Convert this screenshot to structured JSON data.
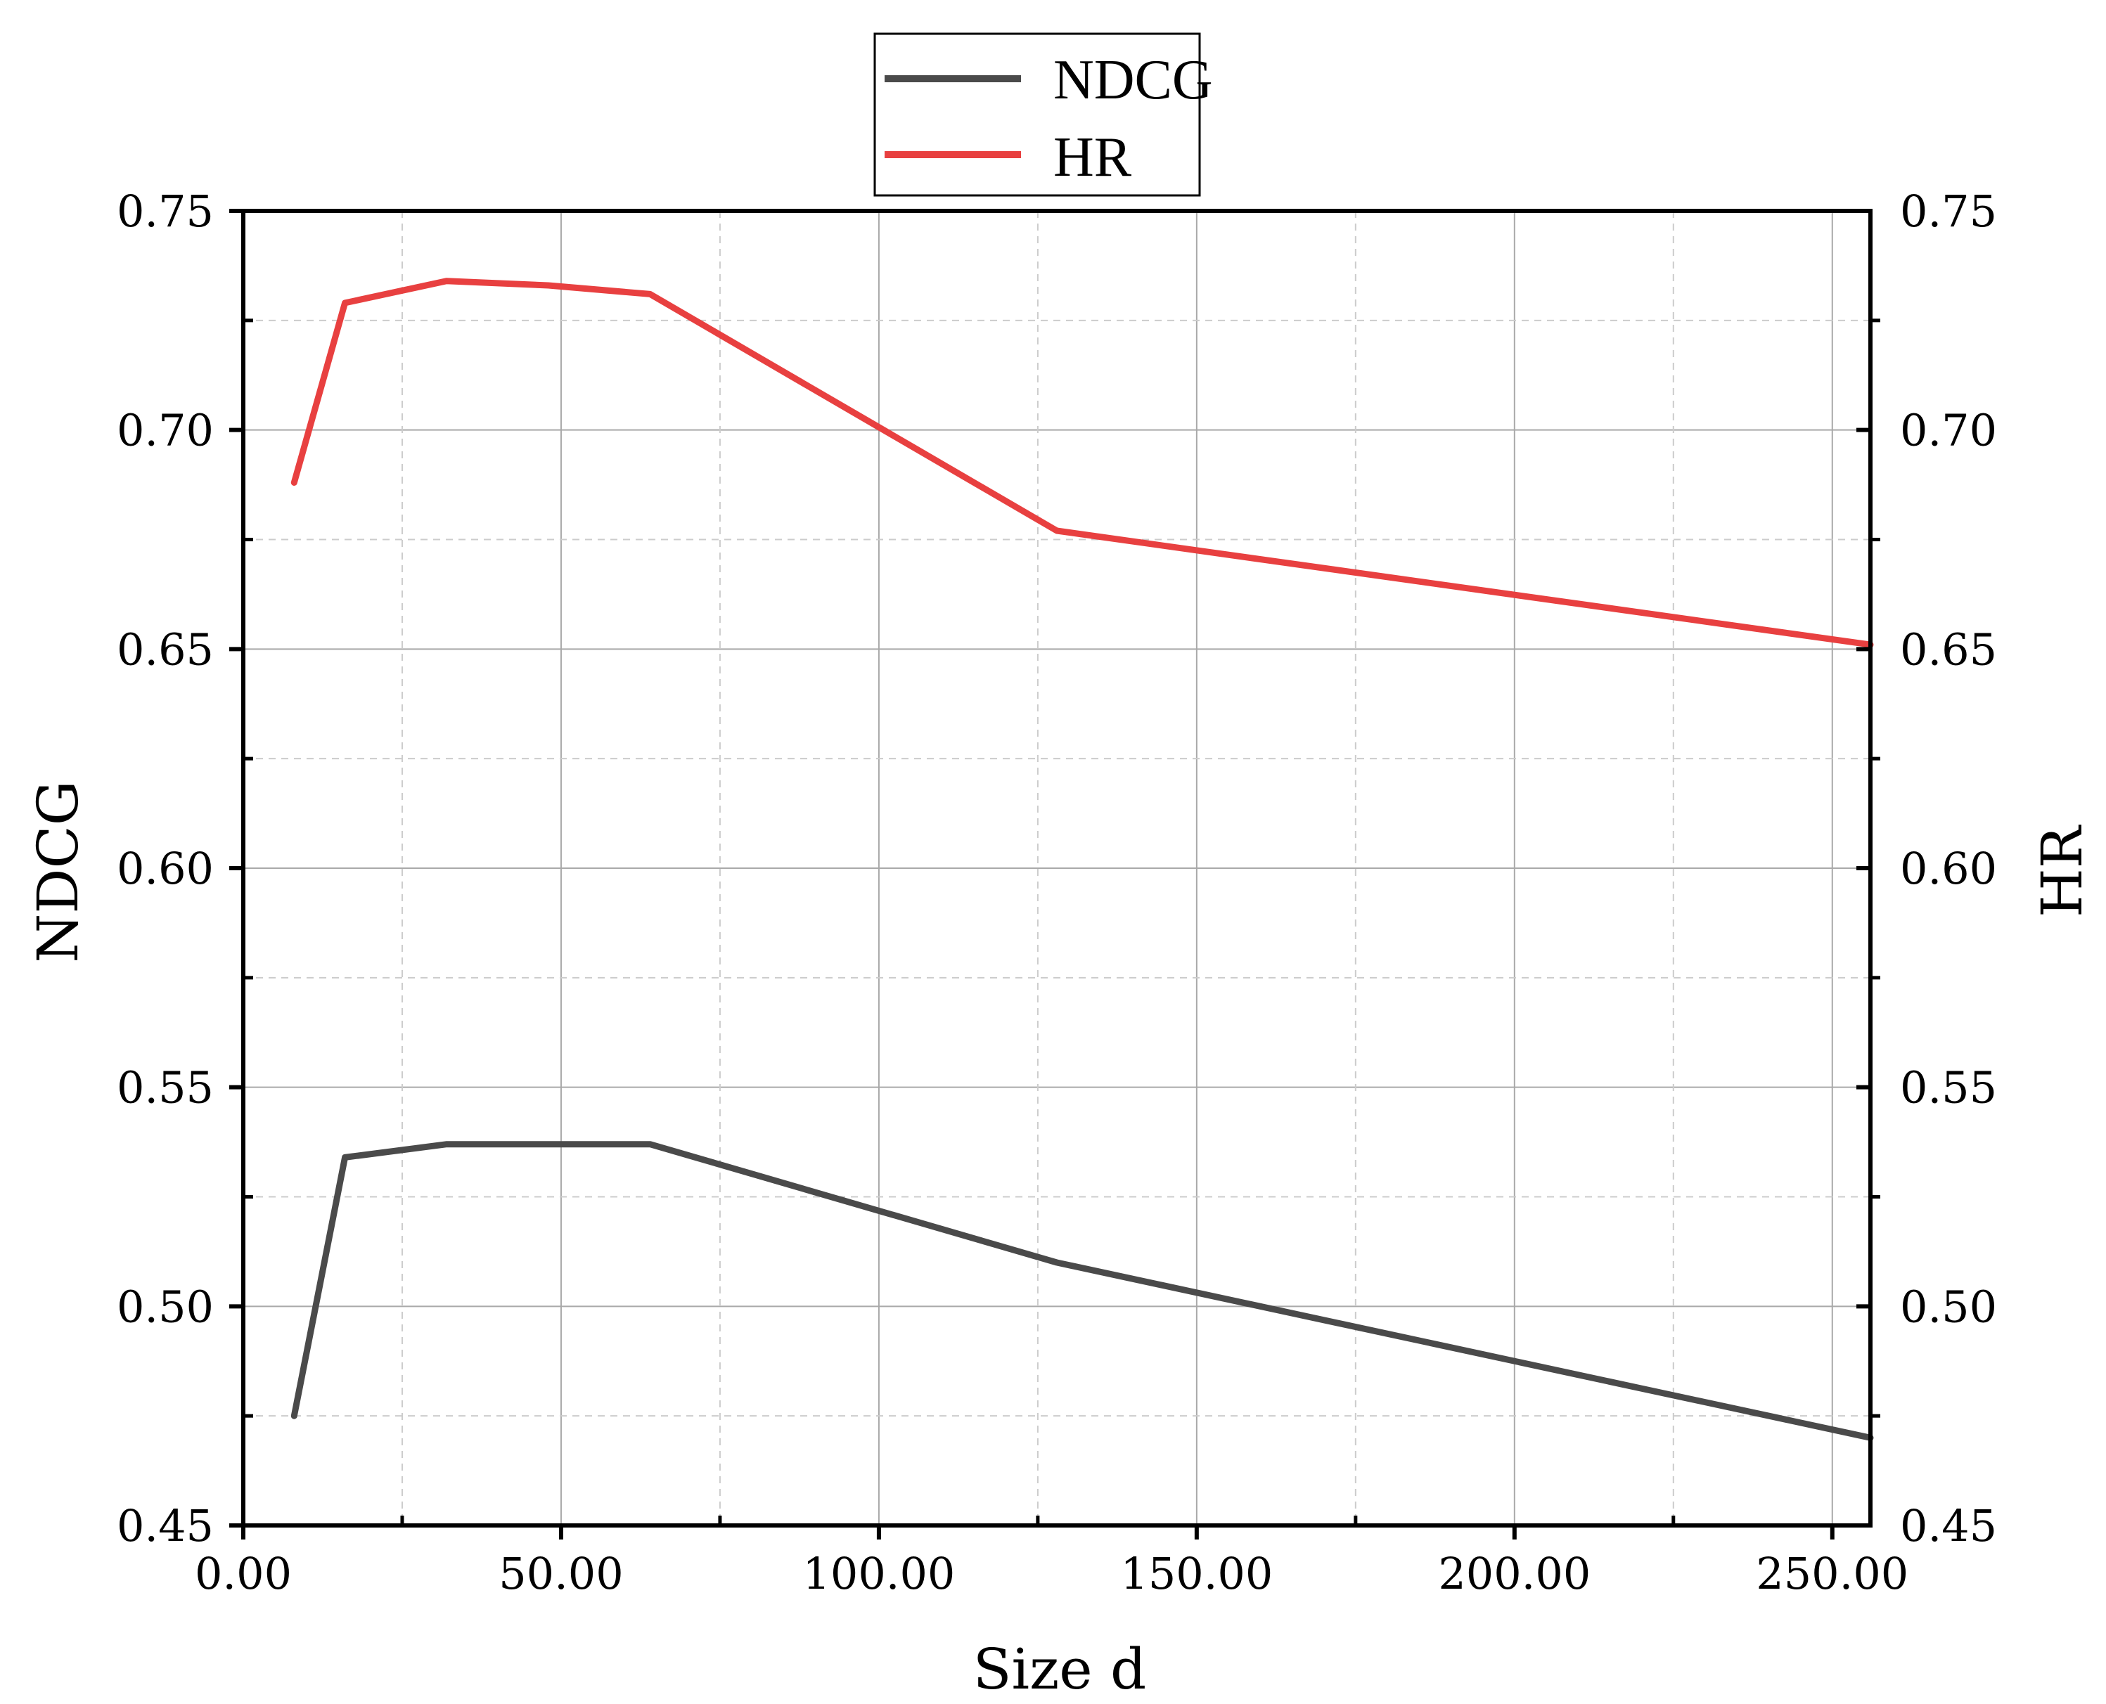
{
  "chart_data": {
    "type": "line",
    "x": [
      8,
      16,
      32,
      48,
      64,
      128,
      256
    ],
    "series": [
      {
        "name": "NDCG",
        "axis": "left",
        "color": "#4a4a4a",
        "values": [
          0.475,
          0.534,
          0.537,
          0.537,
          0.537,
          0.51,
          0.47
        ]
      },
      {
        "name": "HR",
        "axis": "right",
        "color": "#e84040",
        "values": [
          0.688,
          0.729,
          0.734,
          0.733,
          0.731,
          0.677,
          0.651
        ]
      }
    ],
    "xlabel": "Size d",
    "ylabel_left": "NDCG",
    "ylabel_right": "HR",
    "xlim": [
      0,
      256
    ],
    "ylim": [
      0.45,
      0.75
    ],
    "x_ticks": [
      "0.00",
      "50.00",
      "100.00",
      "150.00",
      "200.00",
      "250.00"
    ],
    "x_tick_values": [
      0,
      50,
      100,
      150,
      200,
      250
    ],
    "y_ticks": [
      "0.45",
      "0.50",
      "0.55",
      "0.60",
      "0.65",
      "0.70",
      "0.75"
    ],
    "y_tick_values": [
      0.45,
      0.5,
      0.55,
      0.6,
      0.65,
      0.7,
      0.75
    ],
    "grid": true,
    "legend": "top-center"
  }
}
